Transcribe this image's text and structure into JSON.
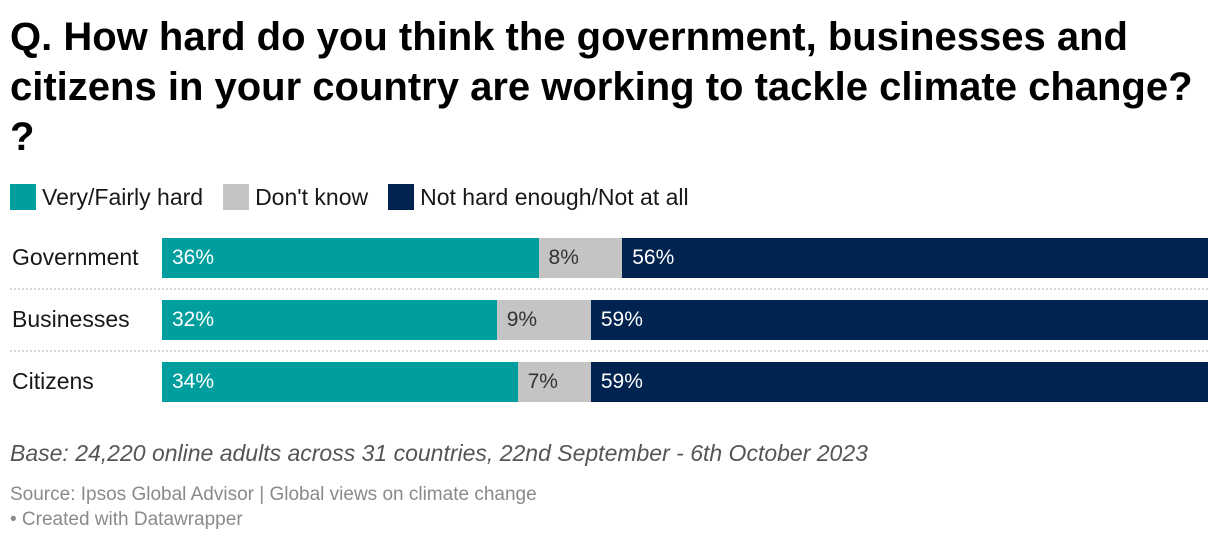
{
  "chart_data": {
    "type": "bar",
    "stacked": true,
    "orientation": "horizontal",
    "title": "Q. How hard do you think the government, businesses and citizens in your country are working to tackle climate change? ?",
    "categories": [
      "Government",
      "Businesses",
      "Citizens"
    ],
    "series": [
      {
        "name": "Very/Fairly hard",
        "color": "#009e9c",
        "label_color": "#ffffff",
        "values": [
          36,
          32,
          34
        ]
      },
      {
        "name": "Don't know",
        "color": "#c4c4c4",
        "label_color": "#333333",
        "values": [
          8,
          9,
          7
        ]
      },
      {
        "name": "Not hard enough/Not at all",
        "color": "#00234f",
        "label_color": "#ffffff",
        "values": [
          56,
          59,
          59
        ]
      }
    ],
    "value_suffix": "%",
    "xlim": [
      0,
      100
    ],
    "legend_position": "top-left",
    "grid": false,
    "notes": "Base: 24,220 online adults across 31 countries, 22nd September - 6th October 2023",
    "source_line": "Source: Ipsos Global Advisor | Global views on climate change",
    "credit_line": "• Created with Datawrapper"
  }
}
